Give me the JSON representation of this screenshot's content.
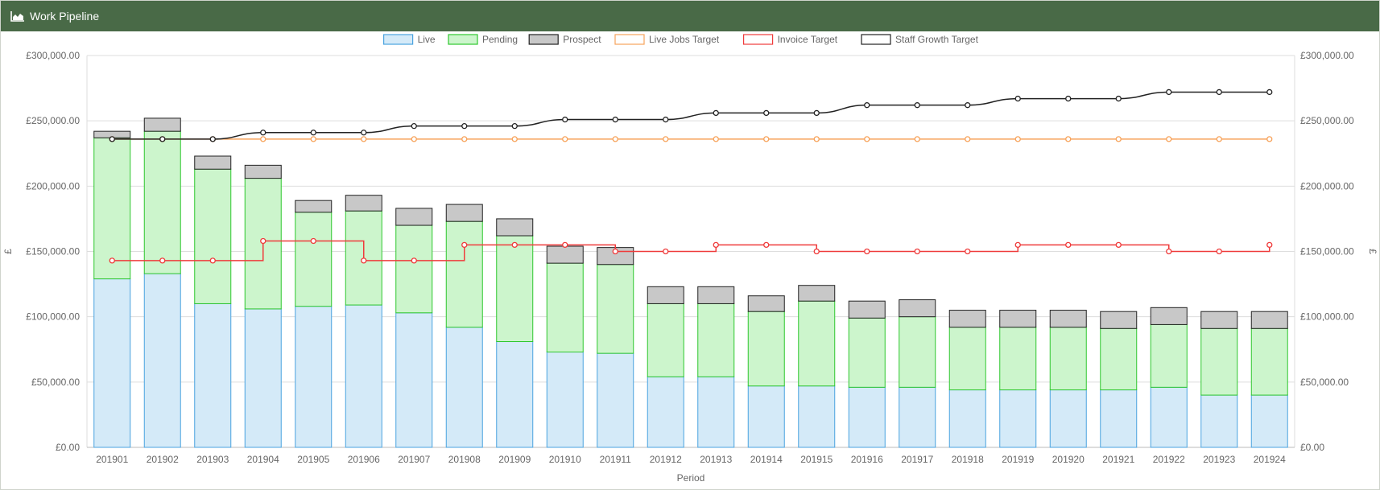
{
  "panel": {
    "title": "Work Pipeline",
    "icon": "area-chart-icon"
  },
  "chart_data": {
    "type": "bar",
    "stacked": true,
    "categories": [
      "201901",
      "201902",
      "201903",
      "201904",
      "201905",
      "201906",
      "201907",
      "201908",
      "201909",
      "201910",
      "201911",
      "201912",
      "201913",
      "201914",
      "201915",
      "201916",
      "201917",
      "201918",
      "201919",
      "201920",
      "201921",
      "201922",
      "201923",
      "201924"
    ],
    "series": [
      {
        "name": "Live",
        "kind": "bar",
        "fill": "#d4eaf8",
        "stroke": "#4aa3df",
        "values": [
          129000,
          133000,
          110000,
          106000,
          108000,
          109000,
          103000,
          92000,
          81000,
          73000,
          72000,
          54000,
          54000,
          47000,
          47000,
          46000,
          46000,
          44000,
          44000,
          44000,
          44000,
          46000,
          40000,
          40000
        ]
      },
      {
        "name": "Pending",
        "kind": "bar",
        "fill": "#ccf5cc",
        "stroke": "#2ec72e",
        "values": [
          108000,
          109000,
          103000,
          100000,
          72000,
          72000,
          67000,
          81000,
          81000,
          68000,
          68000,
          56000,
          56000,
          57000,
          65000,
          53000,
          54000,
          48000,
          48000,
          48000,
          47000,
          48000,
          51000,
          51000
        ]
      },
      {
        "name": "Prospect",
        "kind": "bar",
        "fill": "#c8c8c8",
        "stroke": "#222222",
        "values": [
          5000,
          10000,
          10000,
          10000,
          9000,
          12000,
          13000,
          13000,
          13000,
          13000,
          13000,
          13000,
          13000,
          12000,
          12000,
          13000,
          13000,
          13000,
          13000,
          13000,
          13000,
          13000,
          13000,
          13000
        ]
      },
      {
        "name": "Live Jobs Target",
        "kind": "line",
        "stroke": "#f7a35c",
        "line": "flat",
        "values": [
          236000,
          236000,
          236000,
          236000,
          236000,
          236000,
          236000,
          236000,
          236000,
          236000,
          236000,
          236000,
          236000,
          236000,
          236000,
          236000,
          236000,
          236000,
          236000,
          236000,
          236000,
          236000,
          236000,
          236000
        ]
      },
      {
        "name": "Invoice Target",
        "kind": "line",
        "stroke": "#ef3b3b",
        "line": "step",
        "values": [
          143000,
          143000,
          143000,
          158000,
          158000,
          143000,
          143000,
          155000,
          155000,
          155000,
          150000,
          150000,
          155000,
          155000,
          150000,
          150000,
          150000,
          150000,
          155000,
          155000,
          155000,
          150000,
          150000,
          155000
        ]
      },
      {
        "name": "Staff Growth Target",
        "kind": "line",
        "stroke": "#222222",
        "line": "smooth",
        "values": [
          236000,
          236000,
          236000,
          241000,
          241000,
          241000,
          246000,
          246000,
          246000,
          251000,
          251000,
          251000,
          256000,
          256000,
          256000,
          262000,
          262000,
          262000,
          267000,
          267000,
          267000,
          272000,
          272000,
          272000
        ]
      }
    ],
    "title": "",
    "xlabel": "Period",
    "ylabel": "£",
    "y2label": "£",
    "ylim": [
      0,
      300000
    ],
    "yticks": [
      "£0.00",
      "£50,000.00",
      "£100,000.00",
      "£150,000.00",
      "£200,000.00",
      "£250,000.00",
      "£300,000.00"
    ],
    "ytick_values": [
      0,
      50000,
      100000,
      150000,
      200000,
      250000,
      300000
    ],
    "grid": true,
    "legend_position": "top"
  }
}
